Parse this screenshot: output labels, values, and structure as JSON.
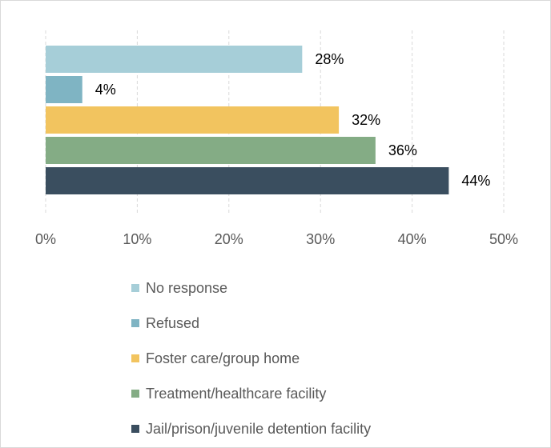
{
  "chart_data": {
    "type": "bar",
    "orientation": "horizontal",
    "categories": [
      "No response",
      "Refused",
      "Foster care/group home",
      "Treatment/healthcare facility",
      "Jail/prison/juvenile detention facility"
    ],
    "values": [
      28,
      4,
      32,
      36,
      44
    ],
    "value_labels": [
      "28%",
      "4%",
      "32%",
      "36%",
      "44%"
    ],
    "colors": [
      "#a6ced8",
      "#7fb4c3",
      "#f2c45f",
      "#84ac85",
      "#3a4e5f"
    ],
    "xlim": [
      0,
      50
    ],
    "x_ticks": [
      "0%",
      "10%",
      "20%",
      "30%",
      "40%",
      "50%"
    ],
    "grid": "vertical, dashed",
    "legend_position": "bottom"
  }
}
